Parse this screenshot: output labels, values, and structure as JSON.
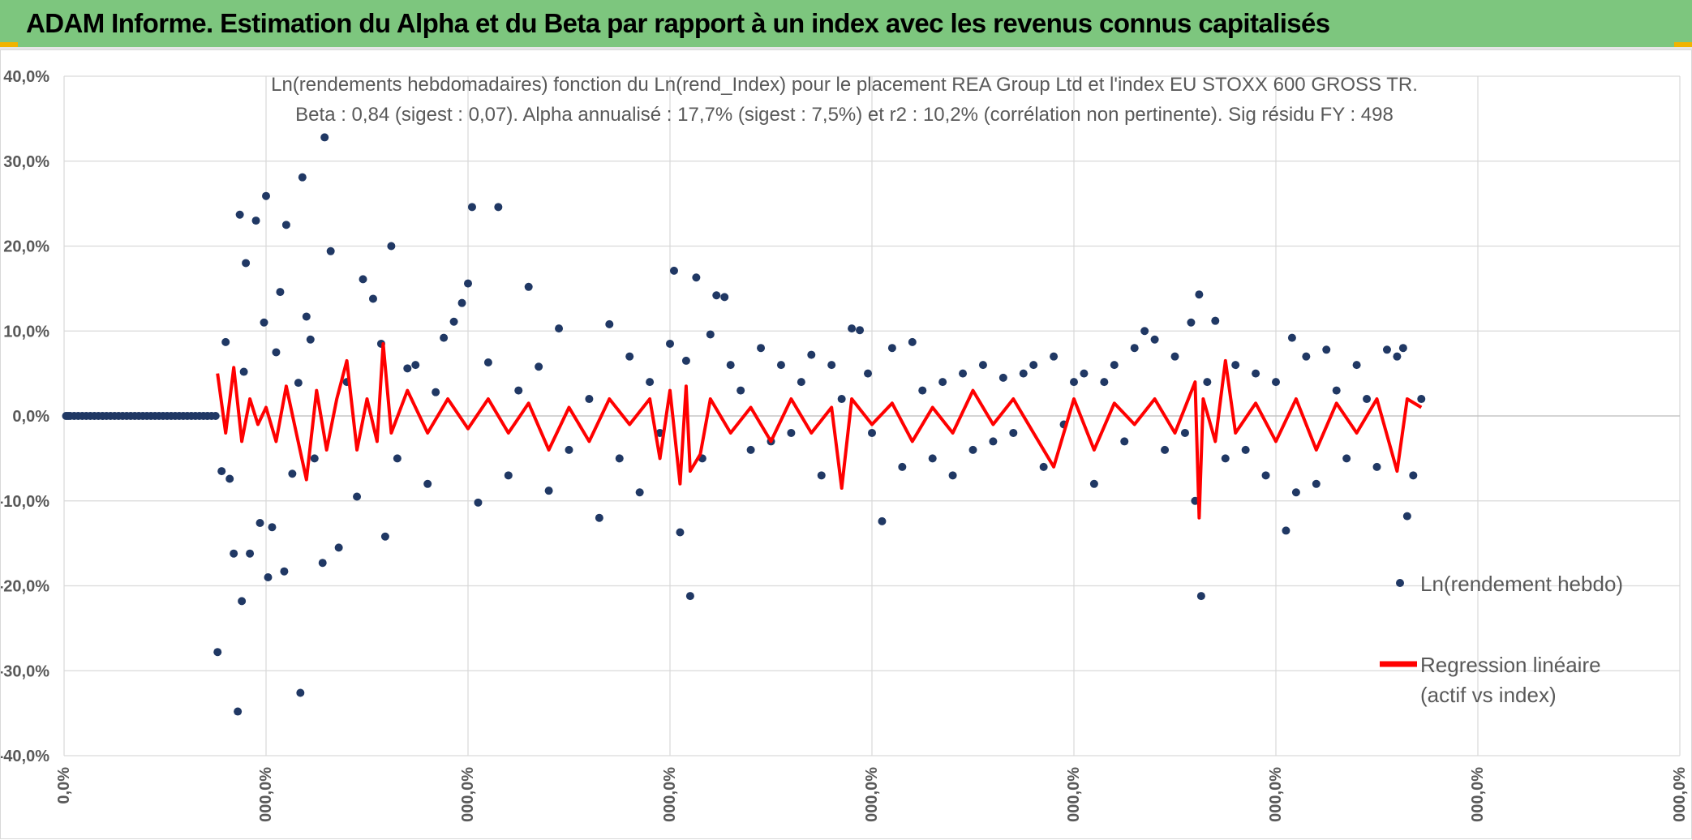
{
  "header": {
    "title": "ADAM Informe. Estimation du Alpha et du Beta par rapport à un index avec les revenus connus capitalisés"
  },
  "colors": {
    "banner": "#7dc67e",
    "corner_accent": "#f0b400",
    "scatter_points": "#203864",
    "regression_line": "#ff0000",
    "gridlines": "#d9d9d9",
    "text": "#595959"
  },
  "chart_data": {
    "type": "scatter",
    "title_line1": "Ln(rendements hebdomadaires) fonction du Ln(rend_Index) pour le placement REA Group Ltd et l'index EU STOXX 600 GROSS TR.",
    "title_line2": "Beta : 0,84 (sigest : 0,07). Alpha annualisé : 17,7% (sigest : 7,5%) et r2 : 10,2% (corrélation non pertinente). Sig résidu FY : 498",
    "ylim": [
      -0.4,
      0.4
    ],
    "y_ticks": [
      "40,0%",
      "30,0%",
      "20,0%",
      "10,0%",
      "0,0%",
      "-10,0%",
      "-20,0%",
      "-30,0%",
      "-40,0%"
    ],
    "x_ticks": [
      "0,0%",
      "000,0%",
      "000,0%",
      "000,0%",
      "000,0%",
      "000,0%",
      "000,0%",
      "000,0%",
      "000,0%"
    ],
    "grid": true,
    "legend_position": "right",
    "series": [
      {
        "name": "Ln(rendement hebdo)",
        "style": "markers",
        "color": "#203864",
        "points": [
          [
            0.01,
            0.0
          ],
          [
            0.02,
            0.0
          ],
          [
            0.03,
            0.0
          ],
          [
            0.05,
            0.0
          ],
          [
            0.07,
            0.0
          ],
          [
            0.09,
            0.0
          ],
          [
            0.11,
            0.0
          ],
          [
            0.13,
            0.0
          ],
          [
            0.15,
            0.0
          ],
          [
            0.17,
            0.0
          ],
          [
            0.19,
            0.0
          ],
          [
            0.21,
            0.0
          ],
          [
            0.23,
            0.0
          ],
          [
            0.25,
            0.0
          ],
          [
            0.27,
            0.0
          ],
          [
            0.29,
            0.0
          ],
          [
            0.31,
            0.0
          ],
          [
            0.33,
            0.0
          ],
          [
            0.35,
            0.0
          ],
          [
            0.37,
            0.0
          ],
          [
            0.39,
            0.0
          ],
          [
            0.41,
            0.0
          ],
          [
            0.43,
            0.0
          ],
          [
            0.45,
            0.0
          ],
          [
            0.47,
            0.0
          ],
          [
            0.49,
            0.0
          ],
          [
            0.51,
            0.0
          ],
          [
            0.53,
            0.0
          ],
          [
            0.55,
            0.0
          ],
          [
            0.57,
            0.0
          ],
          [
            0.59,
            0.0
          ],
          [
            0.61,
            0.0
          ],
          [
            0.63,
            0.0
          ],
          [
            0.65,
            0.0
          ],
          [
            0.67,
            0.0
          ],
          [
            0.69,
            0.0
          ],
          [
            0.71,
            0.0
          ],
          [
            0.73,
            0.0
          ],
          [
            0.75,
            0.0
          ],
          [
            0.76,
            -0.278
          ],
          [
            0.78,
            -0.065
          ],
          [
            0.8,
            0.087
          ],
          [
            0.82,
            -0.074
          ],
          [
            0.84,
            -0.162
          ],
          [
            0.86,
            -0.348
          ],
          [
            0.87,
            0.237
          ],
          [
            0.88,
            -0.218
          ],
          [
            0.89,
            0.052
          ],
          [
            0.9,
            0.18
          ],
          [
            0.92,
            -0.162
          ],
          [
            0.95,
            0.23
          ],
          [
            0.97,
            -0.126
          ],
          [
            0.99,
            0.11
          ],
          [
            1.0,
            0.259
          ],
          [
            1.01,
            -0.19
          ],
          [
            1.03,
            -0.131
          ],
          [
            1.05,
            0.075
          ],
          [
            1.07,
            0.146
          ],
          [
            1.09,
            -0.183
          ],
          [
            1.1,
            0.225
          ],
          [
            1.13,
            -0.068
          ],
          [
            1.16,
            0.039
          ],
          [
            1.18,
            0.281
          ],
          [
            1.2,
            0.117
          ],
          [
            1.17,
            -0.326
          ],
          [
            1.22,
            0.09
          ],
          [
            1.24,
            -0.05
          ],
          [
            1.28,
            -0.173
          ],
          [
            1.29,
            0.328
          ],
          [
            1.32,
            0.194
          ],
          [
            1.36,
            -0.155
          ],
          [
            1.4,
            0.04
          ],
          [
            1.45,
            -0.095
          ],
          [
            1.48,
            0.161
          ],
          [
            1.53,
            0.138
          ],
          [
            1.57,
            0.085
          ],
          [
            1.59,
            -0.142
          ],
          [
            1.62,
            0.2
          ],
          [
            1.65,
            -0.05
          ],
          [
            1.7,
            0.056
          ],
          [
            1.74,
            0.06
          ],
          [
            1.8,
            -0.08
          ],
          [
            1.84,
            0.028
          ],
          [
            1.88,
            0.092
          ],
          [
            1.93,
            0.111
          ],
          [
            1.97,
            0.133
          ],
          [
            2.0,
            0.156
          ],
          [
            2.02,
            0.246
          ],
          [
            2.05,
            -0.102
          ],
          [
            2.1,
            0.063
          ],
          [
            2.15,
            0.246
          ],
          [
            2.2,
            -0.07
          ],
          [
            2.25,
            0.03
          ],
          [
            2.3,
            0.152
          ],
          [
            2.35,
            0.058
          ],
          [
            2.4,
            -0.088
          ],
          [
            2.45,
            0.103
          ],
          [
            2.5,
            -0.04
          ],
          [
            2.6,
            0.02
          ],
          [
            2.65,
            -0.12
          ],
          [
            2.7,
            0.108
          ],
          [
            2.75,
            -0.05
          ],
          [
            2.8,
            0.07
          ],
          [
            2.85,
            -0.09
          ],
          [
            2.9,
            0.04
          ],
          [
            2.95,
            -0.02
          ],
          [
            3.0,
            0.085
          ],
          [
            3.02,
            0.171
          ],
          [
            3.05,
            -0.137
          ],
          [
            3.08,
            0.065
          ],
          [
            3.1,
            -0.212
          ],
          [
            3.13,
            0.163
          ],
          [
            3.16,
            -0.05
          ],
          [
            3.2,
            0.096
          ],
          [
            3.23,
            0.142
          ],
          [
            3.27,
            0.14
          ],
          [
            3.3,
            0.06
          ],
          [
            3.35,
            0.03
          ],
          [
            3.4,
            -0.04
          ],
          [
            3.45,
            0.08
          ],
          [
            3.5,
            -0.03
          ],
          [
            3.55,
            0.06
          ],
          [
            3.6,
            -0.02
          ],
          [
            3.65,
            0.04
          ],
          [
            3.7,
            0.072
          ],
          [
            3.75,
            -0.07
          ],
          [
            3.8,
            0.06
          ],
          [
            3.85,
            0.02
          ],
          [
            3.9,
            0.103
          ],
          [
            3.94,
            0.101
          ],
          [
            3.98,
            0.05
          ],
          [
            4.0,
            -0.02
          ],
          [
            4.05,
            -0.124
          ],
          [
            4.1,
            0.08
          ],
          [
            4.15,
            -0.06
          ],
          [
            4.2,
            0.087
          ],
          [
            4.25,
            0.03
          ],
          [
            4.3,
            -0.05
          ],
          [
            4.35,
            0.04
          ],
          [
            4.4,
            -0.07
          ],
          [
            4.45,
            0.05
          ],
          [
            4.5,
            -0.04
          ],
          [
            4.55,
            0.06
          ],
          [
            4.6,
            -0.03
          ],
          [
            4.65,
            0.045
          ],
          [
            4.7,
            -0.02
          ],
          [
            4.75,
            0.05
          ],
          [
            4.8,
            0.06
          ],
          [
            4.85,
            -0.06
          ],
          [
            4.9,
            0.07
          ],
          [
            4.95,
            -0.01
          ],
          [
            5.0,
            0.04
          ],
          [
            5.05,
            0.05
          ],
          [
            5.1,
            -0.08
          ],
          [
            5.15,
            0.04
          ],
          [
            5.2,
            0.06
          ],
          [
            5.25,
            -0.03
          ],
          [
            5.3,
            0.08
          ],
          [
            5.35,
            0.1
          ],
          [
            5.4,
            0.09
          ],
          [
            5.45,
            -0.04
          ],
          [
            5.5,
            0.07
          ],
          [
            5.55,
            -0.02
          ],
          [
            5.58,
            0.11
          ],
          [
            5.6,
            -0.1
          ],
          [
            5.62,
            0.143
          ],
          [
            5.63,
            -0.212
          ],
          [
            5.66,
            0.04
          ],
          [
            5.7,
            0.112
          ],
          [
            5.75,
            -0.05
          ],
          [
            5.8,
            0.06
          ],
          [
            5.85,
            -0.04
          ],
          [
            5.9,
            0.05
          ],
          [
            5.95,
            -0.07
          ],
          [
            6.0,
            0.04
          ],
          [
            6.05,
            -0.135
          ],
          [
            6.08,
            0.092
          ],
          [
            6.1,
            -0.09
          ],
          [
            6.15,
            0.07
          ],
          [
            6.2,
            -0.08
          ],
          [
            6.25,
            0.078
          ],
          [
            6.3,
            0.03
          ],
          [
            6.35,
            -0.05
          ],
          [
            6.4,
            0.06
          ],
          [
            6.45,
            0.02
          ],
          [
            6.5,
            -0.06
          ],
          [
            6.55,
            0.078
          ],
          [
            6.6,
            0.07
          ],
          [
            6.63,
            0.08
          ],
          [
            6.65,
            -0.118
          ],
          [
            6.68,
            -0.07
          ],
          [
            6.72,
            0.02
          ]
        ]
      },
      {
        "name": "Regression linéaire",
        "label_line2": "(actif vs index)",
        "style": "line",
        "color": "#ff0000",
        "points": [
          [
            0.76,
            0.05
          ],
          [
            0.8,
            -0.02
          ],
          [
            0.84,
            0.057
          ],
          [
            0.88,
            -0.03
          ],
          [
            0.92,
            0.02
          ],
          [
            0.96,
            -0.01
          ],
          [
            1.0,
            0.01
          ],
          [
            1.05,
            -0.03
          ],
          [
            1.1,
            0.035
          ],
          [
            1.15,
            -0.02
          ],
          [
            1.2,
            -0.075
          ],
          [
            1.25,
            0.03
          ],
          [
            1.3,
            -0.04
          ],
          [
            1.35,
            0.02
          ],
          [
            1.4,
            0.065
          ],
          [
            1.45,
            -0.04
          ],
          [
            1.5,
            0.02
          ],
          [
            1.55,
            -0.03
          ],
          [
            1.58,
            0.085
          ],
          [
            1.62,
            -0.02
          ],
          [
            1.7,
            0.03
          ],
          [
            1.8,
            -0.02
          ],
          [
            1.9,
            0.02
          ],
          [
            2.0,
            -0.015
          ],
          [
            2.1,
            0.02
          ],
          [
            2.2,
            -0.02
          ],
          [
            2.3,
            0.015
          ],
          [
            2.4,
            -0.04
          ],
          [
            2.5,
            0.01
          ],
          [
            2.6,
            -0.03
          ],
          [
            2.7,
            0.02
          ],
          [
            2.8,
            -0.01
          ],
          [
            2.9,
            0.02
          ],
          [
            2.95,
            -0.05
          ],
          [
            3.0,
            0.03
          ],
          [
            3.05,
            -0.08
          ],
          [
            3.08,
            0.035
          ],
          [
            3.1,
            -0.065
          ],
          [
            3.15,
            -0.045
          ],
          [
            3.2,
            0.02
          ],
          [
            3.3,
            -0.02
          ],
          [
            3.4,
            0.01
          ],
          [
            3.5,
            -0.03
          ],
          [
            3.6,
            0.02
          ],
          [
            3.7,
            -0.02
          ],
          [
            3.8,
            0.01
          ],
          [
            3.85,
            -0.085
          ],
          [
            3.9,
            0.02
          ],
          [
            4.0,
            -0.01
          ],
          [
            4.1,
            0.015
          ],
          [
            4.2,
            -0.03
          ],
          [
            4.3,
            0.01
          ],
          [
            4.4,
            -0.02
          ],
          [
            4.5,
            0.03
          ],
          [
            4.6,
            -0.01
          ],
          [
            4.7,
            0.02
          ],
          [
            4.8,
            -0.02
          ],
          [
            4.9,
            -0.06
          ],
          [
            5.0,
            0.02
          ],
          [
            5.1,
            -0.04
          ],
          [
            5.2,
            0.015
          ],
          [
            5.3,
            -0.01
          ],
          [
            5.4,
            0.02
          ],
          [
            5.5,
            -0.02
          ],
          [
            5.55,
            0.01
          ],
          [
            5.6,
            0.04
          ],
          [
            5.62,
            -0.12
          ],
          [
            5.64,
            0.02
          ],
          [
            5.7,
            -0.03
          ],
          [
            5.75,
            0.065
          ],
          [
            5.8,
            -0.02
          ],
          [
            5.9,
            0.015
          ],
          [
            6.0,
            -0.03
          ],
          [
            6.1,
            0.02
          ],
          [
            6.2,
            -0.04
          ],
          [
            6.3,
            0.015
          ],
          [
            6.4,
            -0.02
          ],
          [
            6.5,
            0.02
          ],
          [
            6.6,
            -0.065
          ],
          [
            6.65,
            0.02
          ],
          [
            6.72,
            0.01
          ]
        ]
      }
    ]
  }
}
